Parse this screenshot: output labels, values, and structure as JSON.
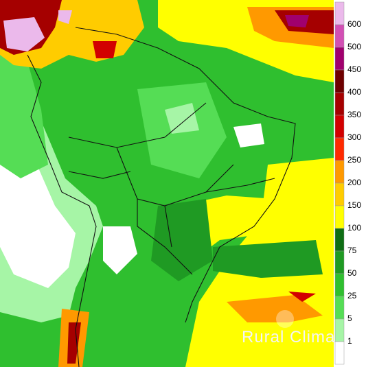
{
  "legend": {
    "labels": [
      600,
      500,
      450,
      400,
      350,
      300,
      250,
      200,
      150,
      100,
      75,
      50,
      25,
      5,
      1
    ],
    "colors": [
      "#ebb9eb",
      "#d24fb4",
      "#a0006e",
      "#6e0000",
      "#a50000",
      "#d20000",
      "#ff2a00",
      "#ff9900",
      "#ffcc00",
      "#ffff00",
      "#0f6e14",
      "#1f9a23",
      "#2fbf2f",
      "#55dd55",
      "#a6f5a6",
      "#ffffff"
    ]
  },
  "watermark": {
    "brand": "Rural Clima"
  }
}
